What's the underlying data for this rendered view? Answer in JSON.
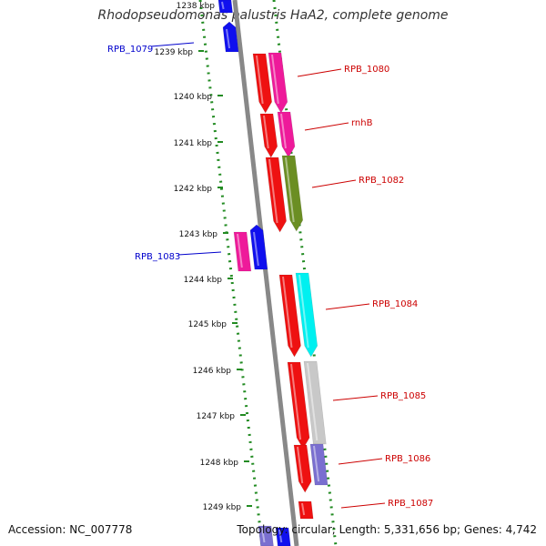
{
  "title": "Rhodopseudomonas palustris HaA2, complete genome",
  "footer": {
    "accession": "Accession: NC_007778",
    "summary": "Topology: circular; Length: 5,331,656 bp; Genes: 4,742"
  },
  "ruler": {
    "ticks": [
      "1238 kbp",
      "1239 kbp",
      "1240 kbp",
      "1241 kbp",
      "1242 kbp",
      "1243 kbp",
      "1244 kbp",
      "1245 kbp",
      "1246 kbp",
      "1247 kbp",
      "1248 kbp",
      "1249 kbp"
    ]
  },
  "colors": {
    "forward_label": "#cc0000",
    "reverse_label": "#0000cc",
    "red": "#ee1111",
    "magenta": "#ee1a9a",
    "olive": "#6b8e23",
    "cyan": "#00f0f0",
    "gray": "#c8c8c8",
    "slate": "#7a6fd0",
    "blue": "#1010ee",
    "backbone": "#888888",
    "dots": "#228b22"
  },
  "gene_labels": [
    {
      "text": "RPB_1079",
      "strand": "reverse"
    },
    {
      "text": "RPB_1080",
      "strand": "forward"
    },
    {
      "text": "rnhB",
      "strand": "forward"
    },
    {
      "text": "RPB_1082",
      "strand": "forward"
    },
    {
      "text": "RPB_1083",
      "strand": "reverse"
    },
    {
      "text": "RPB_1084",
      "strand": "forward"
    },
    {
      "text": "RPB_1085",
      "strand": "forward"
    },
    {
      "text": "RPB_1086",
      "strand": "forward"
    },
    {
      "text": "RPB_1087",
      "strand": "forward"
    }
  ]
}
